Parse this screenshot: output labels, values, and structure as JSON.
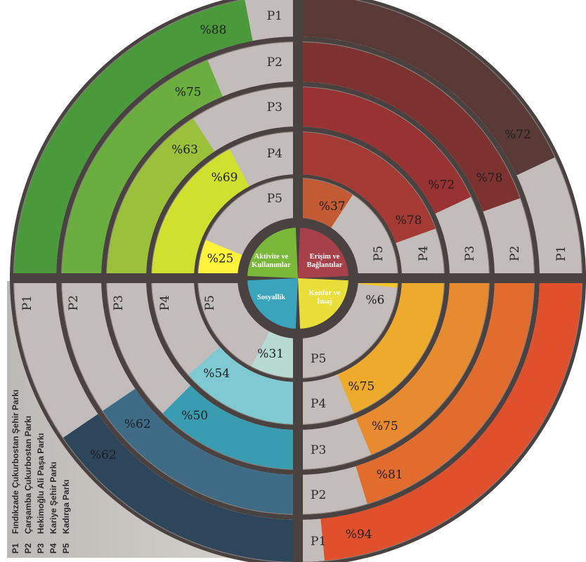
{
  "chart_data": {
    "type": "radial-bar",
    "rings": [
      "P1",
      "P2",
      "P3",
      "P4",
      "P5"
    ],
    "categories": [
      {
        "name_lines": [
          "Aktivite ve",
          "Kullanımlar"
        ],
        "quadrant": "top-left",
        "color": "#7ab83a",
        "ring_colors": [
          "#4a9a3b",
          "#6aae3f",
          "#9bc13a",
          "#cfe02f",
          "#fff23a"
        ],
        "values": [
          88,
          75,
          63,
          69,
          25
        ]
      },
      {
        "name_lines": [
          "Erişim ve",
          "Bağlantılar"
        ],
        "quadrant": "top-right",
        "color": "#a8404a",
        "ring_colors": [
          "#5a3a36",
          "#7e3230",
          "#993232",
          "#a53a34",
          "#c25a34"
        ],
        "values": [
          72,
          78,
          72,
          78,
          37
        ]
      },
      {
        "name_lines": [
          "Konfor ve",
          "İmaj"
        ],
        "quadrant": "bottom-right",
        "color": "#eadf3a",
        "ring_colors": [
          "#e0502c",
          "#e26c2e",
          "#e78a30",
          "#edaa2c",
          "#f3c52a"
        ],
        "values": [
          94,
          81,
          75,
          75,
          6
        ]
      },
      {
        "name_lines": [
          "Sosyallik"
        ],
        "quadrant": "bottom-left",
        "color": "#3aa4bc",
        "ring_colors": [
          "#2e465c",
          "#3e6c86",
          "#3a9cb0",
          "#7ec9d2",
          "#b7dbd2"
        ],
        "values": [
          62,
          62,
          50,
          54,
          31
        ]
      }
    ],
    "value_labels": [
      [
        "%88",
        "%75",
        "%63",
        "%69",
        "%25"
      ],
      [
        "%72",
        "%78",
        "%72",
        "%78",
        "%37"
      ],
      [
        "%94",
        "%81",
        "%75",
        "%75",
        "%6"
      ],
      [
        "%62",
        "%62",
        "%50",
        "%54",
        "%31"
      ]
    ],
    "track_color": "#c2bcba",
    "separator_color": "#4a4240",
    "legend": [
      {
        "code": "P1",
        "name": "Fındıkzade Çukurbostan Şehir Parkı"
      },
      {
        "code": "P2",
        "name": "Çarşamba Çukurbostan Parkı"
      },
      {
        "code": "P3",
        "name": "Hekimoğlu Ali Paşa Parkı"
      },
      {
        "code": "P4",
        "name": "Kariye Şehir Parkı"
      },
      {
        "code": "P5",
        "name": "Kadırga Parkı"
      }
    ]
  }
}
